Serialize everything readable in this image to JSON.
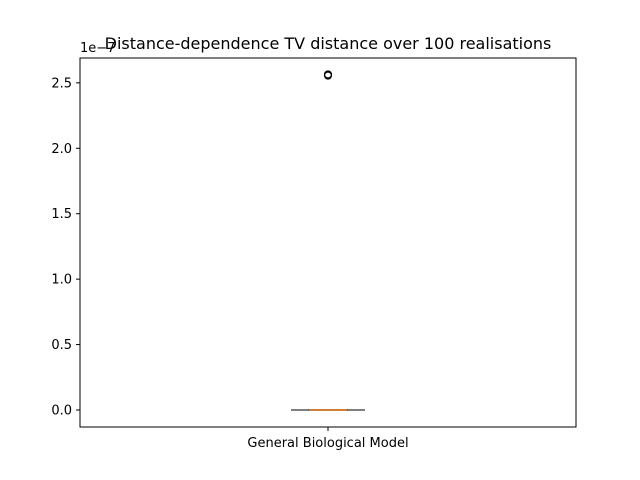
{
  "chart_data": {
    "type": "box",
    "title": "Distance-dependence TV distance over 100 realisations",
    "xlabel": "",
    "ylabel": "",
    "y_offset_label": "1e−7",
    "y_scale": 1e-07,
    "ylim": [
      -0.13,
      2.69
    ],
    "yticks": [
      0.0,
      0.5,
      1.0,
      1.5,
      2.0,
      2.5
    ],
    "ytick_labels": [
      "0.0",
      "0.5",
      "1.0",
      "1.5",
      "2.0",
      "2.5"
    ],
    "categories": [
      "General Biological Model"
    ],
    "boxes": [
      {
        "name": "General Biological Model",
        "whisker_low": 0.0,
        "q1": 0.0,
        "median": 0.0,
        "q3": 0.0,
        "whisker_high": 0.0,
        "outliers": [
          2.56,
          2.555,
          2.565
        ]
      }
    ],
    "grid": false,
    "colors": {
      "median": "#ff7f0e",
      "box": "#000000",
      "outlier": "#000000"
    }
  }
}
